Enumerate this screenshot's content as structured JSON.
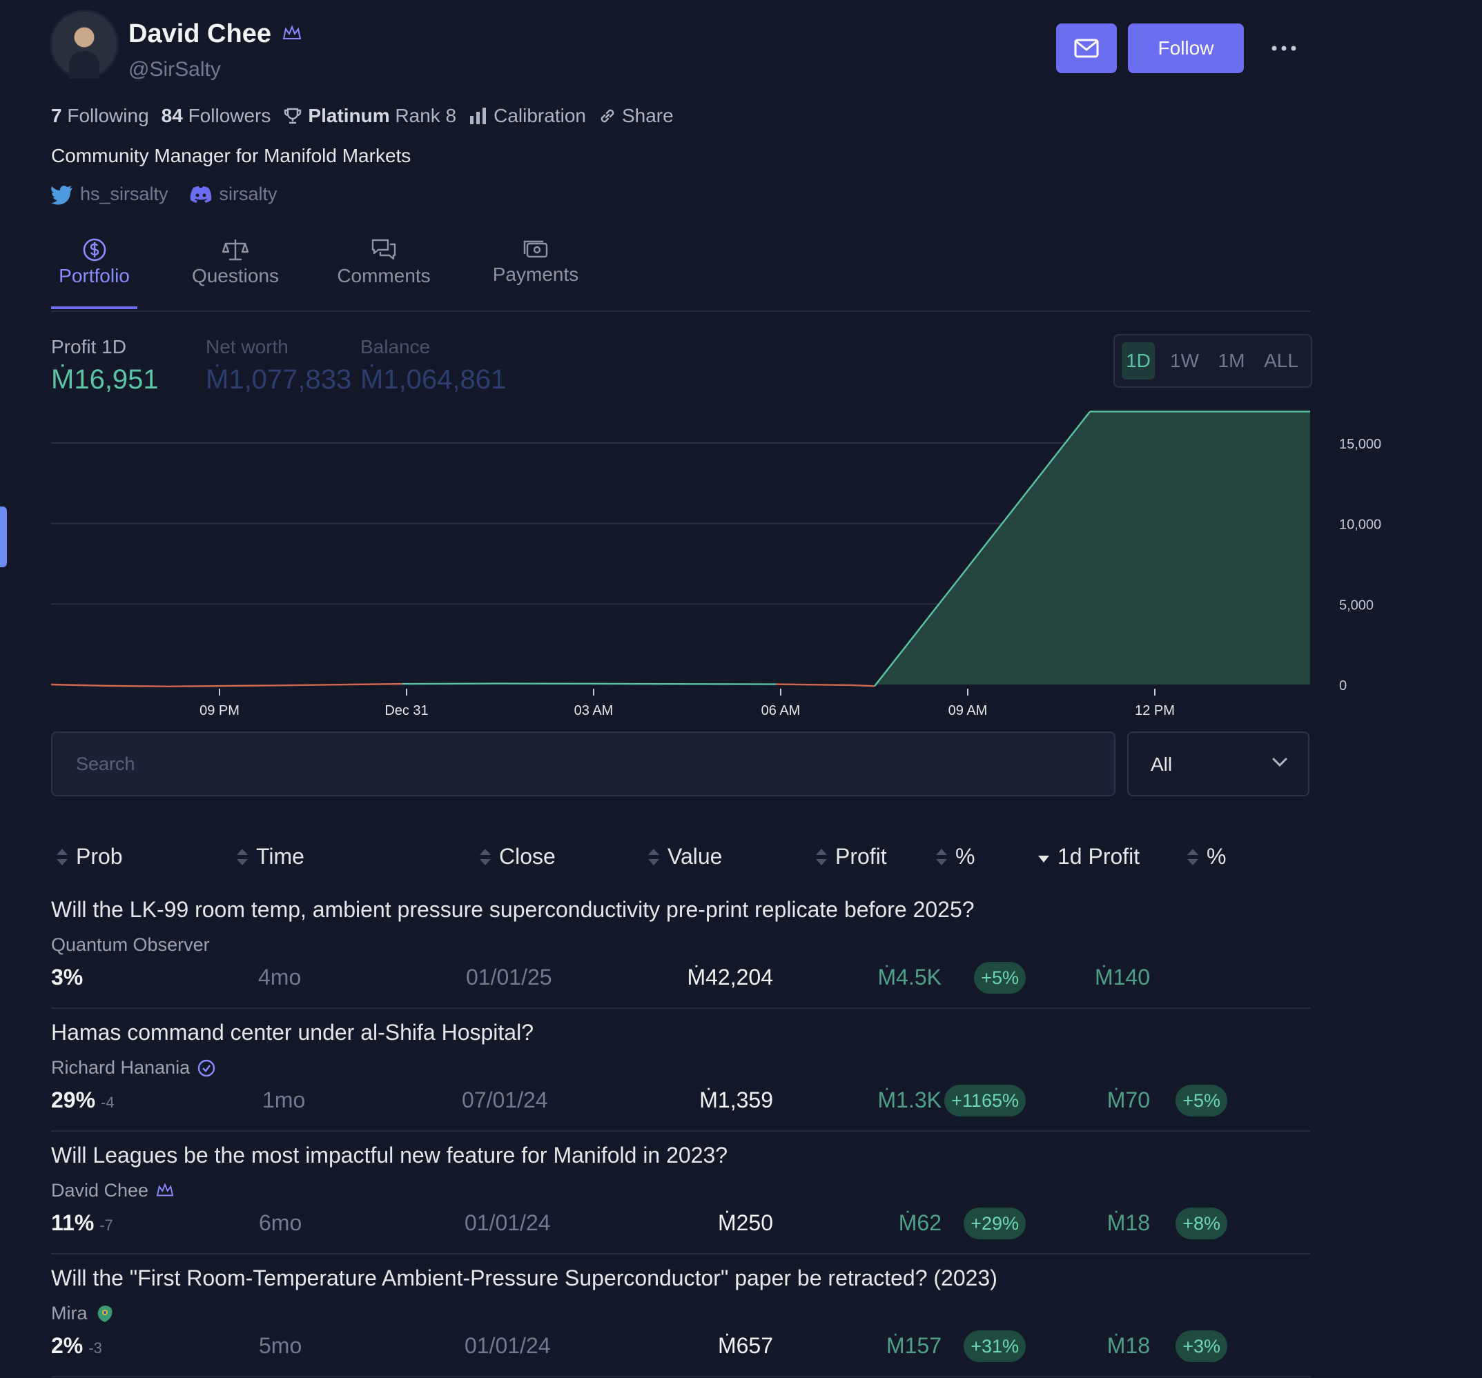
{
  "profile": {
    "name": "David Chee",
    "handle": "@SirSalty",
    "bio": "Community Manager for Manifold Markets",
    "twitter": "hs_sirsalty",
    "discord": "sirsalty",
    "follow_label": "Follow"
  },
  "stats": {
    "following_count": "7",
    "following_label": "Following",
    "followers_count": "84",
    "followers_label": "Followers",
    "league": "Platinum",
    "rank": "Rank 8",
    "calibration": "Calibration",
    "share": "Share"
  },
  "tabs": [
    {
      "label": "Portfolio",
      "icon": "dollar-circle-icon",
      "active": true
    },
    {
      "label": "Questions",
      "icon": "scale-icon"
    },
    {
      "label": "Comments",
      "icon": "chat-bubbles-icon"
    },
    {
      "label": "Payments",
      "icon": "cash-icon"
    }
  ],
  "summary": {
    "profit_label": "Profit 1D",
    "profit_value": "Ṁ16,951",
    "networth_label": "Net worth",
    "networth_value": "Ṁ1,077,833",
    "balance_label": "Balance",
    "balance_value": "Ṁ1,064,861"
  },
  "ranges": [
    "1D",
    "1W",
    "1M",
    "ALL"
  ],
  "active_range": "1D",
  "chart_data": {
    "type": "area",
    "x": [
      "18:00",
      "19:30",
      "21:00",
      "22:30",
      "Dec 31 00:00",
      "01:30",
      "03:00",
      "04:30",
      "06:00",
      "07:00",
      "07:45",
      "11:15",
      "13:30"
    ],
    "y": [
      0,
      -80,
      -120,
      -60,
      40,
      60,
      50,
      30,
      20,
      -40,
      -100,
      16951,
      16951
    ],
    "xticks": [
      "09 PM",
      "Dec 31",
      "03 AM",
      "06 AM",
      "09 AM",
      "12 PM"
    ],
    "yticks": [
      "0",
      "5,000",
      "10,000",
      "15,000"
    ],
    "ylim": [
      -100,
      17000
    ],
    "grid": true,
    "colors": {
      "positive": "#5bc4a6",
      "negative": "#d4694e",
      "fill": "#25433f"
    }
  },
  "search": {
    "placeholder": "Search"
  },
  "filter": {
    "value": "All"
  },
  "columns": [
    "Prob",
    "Time",
    "Close",
    "Value",
    "Profit",
    "%",
    "1d Profit",
    "%"
  ],
  "rows": [
    {
      "title": "Will the LK-99 room temp, ambient pressure superconductivity pre-print replicate before 2025?",
      "creator": "Quantum Observer",
      "prob": "3%",
      "prob_change": "",
      "time": "4mo",
      "close": "01/01/25",
      "value": "Ṁ42,204",
      "profit": "Ṁ4.5K",
      "profit_pct": "+5%",
      "day_profit": "Ṁ140",
      "day_pct": ""
    },
    {
      "title": "Hamas command center under al-Shifa Hospital?",
      "creator": "Richard Hanania",
      "prob": "29%",
      "prob_change": "-4",
      "time": "1mo",
      "close": "07/01/24",
      "value": "Ṁ1,359",
      "profit": "Ṁ1.3K",
      "profit_pct": "+1165%",
      "day_profit": "Ṁ70",
      "day_pct": "+5%"
    },
    {
      "title": "Will Leagues be the most impactful new feature for Manifold in 2023?",
      "creator": "David Chee",
      "prob": "11%",
      "prob_change": "-7",
      "time": "6mo",
      "close": "01/01/24",
      "value": "Ṁ250",
      "profit": "Ṁ62",
      "profit_pct": "+29%",
      "day_profit": "Ṁ18",
      "day_pct": "+8%"
    },
    {
      "title": "Will the \"First Room-Temperature Ambient-Pressure Superconductor\" paper be retracted? (2023)",
      "creator": "Mira",
      "prob": "2%",
      "prob_change": "-3",
      "time": "5mo",
      "close": "01/01/24",
      "value": "Ṁ657",
      "profit": "Ṁ157",
      "profit_pct": "+31%",
      "day_profit": "Ṁ18",
      "day_pct": "+3%"
    }
  ]
}
